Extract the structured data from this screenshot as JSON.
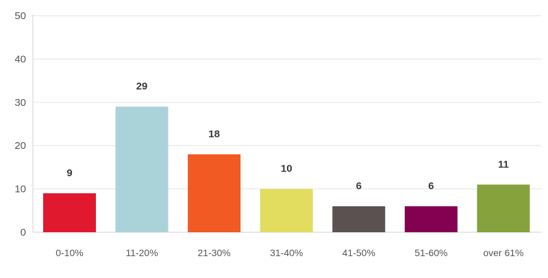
{
  "chart_data": {
    "type": "bar",
    "title": "",
    "xlabel": "",
    "ylabel": "",
    "categories": [
      "0-10%",
      "11-20%",
      "21-30%",
      "31-40%",
      "41-50%",
      "51-60%",
      "over 61%"
    ],
    "values": [
      9,
      29,
      18,
      10,
      6,
      6,
      11
    ],
    "colors": [
      "#e0192f",
      "#aad3d9",
      "#f15a22",
      "#e2dc5f",
      "#5a5150",
      "#840051",
      "#86a23c"
    ],
    "ylim": [
      0,
      50
    ],
    "yticks": [
      0,
      10,
      20,
      30,
      40,
      50
    ],
    "grid": true,
    "data_labels": true
  }
}
